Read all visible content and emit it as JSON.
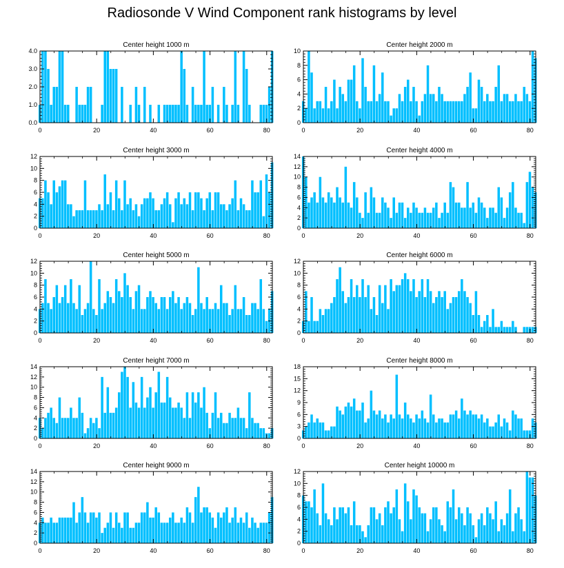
{
  "page": {
    "title": "Radiosonde V Wind Component rank histograms by level"
  },
  "style": {
    "bar_color": "#00bfff",
    "bar_edge": "#ffffff",
    "axis_color": "#000000"
  },
  "chart_data": [
    {
      "type": "bar",
      "title": "Center height 1000 m",
      "xlim": [
        0,
        82
      ],
      "ylim": [
        0,
        4
      ],
      "xticks": [
        0,
        20,
        40,
        60,
        80
      ],
      "yticks": [
        0,
        1,
        2,
        3,
        4
      ],
      "yticklabels": [
        "0.0",
        "1.0",
        "2.0",
        "3.0",
        "4.0"
      ],
      "ylabel_fmt": "1",
      "values": [
        1,
        4,
        4,
        3,
        1,
        2,
        2,
        4,
        4,
        1,
        1,
        0,
        0,
        2,
        1,
        1,
        1,
        2,
        2,
        0,
        0,
        0,
        1,
        4,
        4,
        3,
        3,
        3,
        0,
        2,
        0,
        0,
        1,
        0,
        2,
        1,
        0,
        2,
        0,
        1,
        0,
        0,
        1,
        0,
        1,
        1,
        1,
        1,
        1,
        1,
        4,
        3,
        1,
        0,
        2,
        1,
        1,
        1,
        4,
        1,
        1,
        2,
        0,
        1,
        0,
        2,
        1,
        0,
        1,
        4,
        1,
        0,
        4,
        3,
        1,
        0,
        0,
        0,
        1,
        1,
        1,
        2,
        4
      ]
    },
    {
      "type": "bar",
      "title": "Center height 2000 m",
      "xlim": [
        0,
        82
      ],
      "ylim": [
        0,
        10
      ],
      "xticks": [
        0,
        20,
        40,
        60,
        80
      ],
      "yticks": [
        0,
        2,
        4,
        6,
        8,
        10
      ],
      "yticklabels": [
        "0",
        "2",
        "4",
        "6",
        "8",
        "10"
      ],
      "values": [
        3,
        2,
        10,
        7,
        2,
        3,
        3,
        2,
        5,
        2,
        3,
        6,
        2,
        5,
        4,
        3,
        6,
        6,
        8,
        3,
        2,
        9,
        5,
        3,
        3,
        8,
        3,
        4,
        7,
        3,
        3,
        1,
        2,
        2,
        4,
        3,
        5,
        6,
        3,
        5,
        3,
        1,
        3,
        4,
        8,
        4,
        4,
        3,
        5,
        4,
        3,
        3,
        3,
        3,
        3,
        3,
        3,
        4,
        5,
        7,
        2,
        2,
        6,
        5,
        3,
        4,
        3,
        3,
        5,
        8,
        3,
        4,
        4,
        3,
        3,
        4,
        3,
        3,
        5,
        4,
        3,
        10,
        9
      ]
    },
    {
      "type": "bar",
      "title": "Center height 3000 m",
      "xlim": [
        0,
        82
      ],
      "ylim": [
        0,
        12
      ],
      "xticks": [
        0,
        20,
        40,
        60,
        80
      ],
      "yticks": [
        0,
        2,
        4,
        6,
        8,
        10,
        12
      ],
      "yticklabels": [
        "0",
        "2",
        "4",
        "6",
        "8",
        "10",
        "12"
      ],
      "values": [
        5,
        5,
        8,
        6,
        4,
        8,
        6,
        7,
        8,
        8,
        4,
        4,
        2,
        3,
        3,
        3,
        8,
        3,
        3,
        3,
        3,
        4,
        3,
        9,
        4,
        6,
        3,
        8,
        5,
        3,
        8,
        4,
        5,
        3,
        4,
        2,
        4,
        5,
        5,
        6,
        5,
        3,
        3,
        4,
        5,
        6,
        4,
        1,
        5,
        6,
        4,
        5,
        4,
        6,
        3,
        6,
        6,
        5,
        3,
        5,
        6,
        3,
        6,
        6,
        4,
        4,
        3,
        4,
        5,
        8,
        3,
        5,
        4,
        3,
        3,
        8,
        6,
        6,
        8,
        2,
        9,
        6,
        11
      ]
    },
    {
      "type": "bar",
      "title": "Center height 4000 m",
      "xlim": [
        0,
        82
      ],
      "ylim": [
        0,
        14
      ],
      "xticks": [
        0,
        20,
        40,
        60,
        80
      ],
      "yticks": [
        0,
        2,
        4,
        6,
        8,
        10,
        12,
        14
      ],
      "yticklabels": [
        "0",
        "2",
        "4",
        "6",
        "8",
        "10",
        "12",
        "14"
      ],
      "values": [
        14,
        10,
        5,
        6,
        7,
        5,
        10,
        6,
        5,
        7,
        6,
        5,
        8,
        6,
        5,
        12,
        5,
        4,
        9,
        6,
        3,
        2,
        7,
        3,
        8,
        6,
        3,
        3,
        6,
        5,
        4,
        2,
        6,
        3,
        5,
        5,
        2,
        4,
        3,
        5,
        4,
        3,
        3,
        4,
        3,
        3,
        4,
        5,
        2,
        3,
        5,
        3,
        9,
        8,
        5,
        5,
        4,
        4,
        9,
        4,
        5,
        3,
        6,
        5,
        4,
        2,
        4,
        4,
        3,
        8,
        6,
        2,
        4,
        7,
        9,
        4,
        3,
        3,
        1,
        9,
        11,
        8,
        7
      ]
    },
    {
      "type": "bar",
      "title": "Center height 5000 m",
      "xlim": [
        0,
        82
      ],
      "ylim": [
        0,
        12
      ],
      "xticks": [
        0,
        20,
        40,
        60,
        80
      ],
      "yticks": [
        0,
        2,
        4,
        6,
        8,
        10,
        12
      ],
      "yticklabels": [
        "0",
        "2",
        "4",
        "6",
        "8",
        "10",
        "12"
      ],
      "values": [
        4,
        5,
        9,
        5,
        4,
        6,
        8,
        5,
        6,
        8,
        5,
        9,
        5,
        4,
        8,
        3,
        4,
        5,
        12,
        4,
        3,
        9,
        4,
        5,
        7,
        6,
        5,
        9,
        7,
        6,
        10,
        8,
        6,
        4,
        7,
        8,
        4,
        4,
        6,
        7,
        6,
        5,
        4,
        6,
        6,
        4,
        6,
        7,
        5,
        6,
        4,
        5,
        6,
        5,
        3,
        4,
        11,
        5,
        4,
        6,
        4,
        4,
        5,
        4,
        8,
        5,
        5,
        3,
        4,
        8,
        4,
        4,
        6,
        3,
        3,
        5,
        5,
        4,
        9,
        4,
        2,
        4,
        7
      ]
    },
    {
      "type": "bar",
      "title": "Center height 6000 m",
      "xlim": [
        0,
        82
      ],
      "ylim": [
        0,
        12
      ],
      "xticks": [
        0,
        20,
        40,
        60,
        80
      ],
      "yticks": [
        0,
        2,
        4,
        6,
        8,
        10,
        12
      ],
      "yticklabels": [
        "0",
        "2",
        "4",
        "6",
        "8",
        "10",
        "12"
      ],
      "values": [
        2,
        7,
        2,
        6,
        2,
        2,
        4,
        3,
        4,
        4,
        5,
        6,
        9,
        11,
        7,
        5,
        6,
        9,
        6,
        8,
        6,
        9,
        6,
        8,
        4,
        6,
        3,
        8,
        5,
        8,
        4,
        9,
        7,
        8,
        8,
        9,
        10,
        9,
        7,
        9,
        6,
        7,
        9,
        6,
        9,
        7,
        5,
        6,
        7,
        6,
        7,
        4,
        5,
        6,
        6,
        7,
        9,
        7,
        6,
        5,
        3,
        7,
        3,
        1,
        2,
        3,
        1,
        4,
        1,
        1,
        2,
        1,
        1,
        1,
        2,
        1,
        0,
        0,
        1,
        1,
        1,
        1,
        1
      ]
    },
    {
      "type": "bar",
      "title": "Center height 7000 m",
      "xlim": [
        0,
        82
      ],
      "ylim": [
        0,
        14
      ],
      "xticks": [
        0,
        20,
        40,
        60,
        80
      ],
      "yticks": [
        0,
        2,
        4,
        6,
        8,
        10,
        12,
        14
      ],
      "yticklabels": [
        "0",
        "2",
        "4",
        "6",
        "8",
        "10",
        "12",
        "14"
      ],
      "values": [
        4,
        2,
        4,
        5,
        6,
        4,
        3,
        8,
        4,
        4,
        4,
        6,
        4,
        4,
        8,
        5,
        1,
        2,
        4,
        3,
        4,
        2,
        12,
        5,
        10,
        5,
        5,
        6,
        9,
        13,
        14,
        12,
        6,
        11,
        7,
        6,
        12,
        6,
        8,
        10,
        6,
        9,
        13,
        7,
        7,
        12,
        8,
        6,
        6,
        7,
        6,
        4,
        9,
        4,
        9,
        7,
        9,
        6,
        10,
        5,
        2,
        5,
        9,
        4,
        5,
        3,
        3,
        5,
        4,
        4,
        6,
        4,
        4,
        2,
        9,
        4,
        3,
        3,
        2,
        2,
        1,
        1,
        2
      ]
    },
    {
      "type": "bar",
      "title": "Center height 8000 m",
      "xlim": [
        0,
        82
      ],
      "ylim": [
        0,
        18
      ],
      "xticks": [
        0,
        20,
        40,
        60,
        80
      ],
      "yticks": [
        0,
        3,
        6,
        9,
        12,
        15,
        18
      ],
      "yticklabels": [
        "0",
        "3",
        "6",
        "9",
        "12",
        "15",
        "18"
      ],
      "values": [
        2,
        3,
        4,
        6,
        4,
        5,
        4,
        4,
        2,
        2,
        3,
        3,
        8,
        7,
        6,
        8,
        9,
        8,
        10,
        7,
        7,
        9,
        4,
        5,
        12,
        7,
        6,
        7,
        5,
        6,
        4,
        6,
        5,
        16,
        6,
        5,
        9,
        6,
        5,
        4,
        6,
        5,
        7,
        5,
        4,
        11,
        6,
        4,
        5,
        5,
        4,
        4,
        6,
        6,
        7,
        5,
        10,
        7,
        6,
        7,
        6,
        6,
        5,
        6,
        4,
        5,
        3,
        3,
        4,
        6,
        3,
        5,
        4,
        2,
        7,
        6,
        5,
        5,
        2,
        2,
        2,
        5,
        4
      ]
    },
    {
      "type": "bar",
      "title": "Center height 9000 m",
      "xlim": [
        0,
        82
      ],
      "ylim": [
        0,
        14
      ],
      "xticks": [
        0,
        20,
        40,
        60,
        80
      ],
      "yticks": [
        0,
        2,
        4,
        6,
        8,
        10,
        12,
        14
      ],
      "yticklabels": [
        "0",
        "2",
        "4",
        "6",
        "8",
        "10",
        "12",
        "14"
      ],
      "values": [
        4,
        5,
        4,
        4,
        5,
        4,
        4,
        5,
        5,
        5,
        5,
        5,
        8,
        4,
        6,
        9,
        6,
        4,
        6,
        6,
        5,
        6,
        2,
        3,
        4,
        6,
        3,
        6,
        4,
        3,
        6,
        6,
        3,
        3,
        4,
        4,
        6,
        6,
        8,
        5,
        5,
        7,
        6,
        4,
        4,
        4,
        5,
        6,
        4,
        4,
        5,
        4,
        7,
        6,
        4,
        9,
        11,
        6,
        7,
        7,
        6,
        5,
        3,
        6,
        5,
        6,
        7,
        4,
        5,
        7,
        4,
        5,
        4,
        6,
        3,
        5,
        4,
        3,
        4,
        4,
        4,
        6,
        9
      ]
    },
    {
      "type": "bar",
      "title": "Center height 10000 m",
      "xlim": [
        0,
        82
      ],
      "ylim": [
        0,
        12
      ],
      "xticks": [
        0,
        20,
        40,
        60,
        80
      ],
      "yticks": [
        0,
        2,
        4,
        6,
        8,
        10,
        12
      ],
      "yticklabels": [
        "0",
        "2",
        "4",
        "6",
        "8",
        "10",
        "12"
      ],
      "values": [
        8,
        7,
        7,
        6,
        9,
        5,
        3,
        10,
        5,
        4,
        3,
        6,
        4,
        6,
        6,
        5,
        6,
        3,
        7,
        3,
        3,
        2,
        1,
        3,
        6,
        6,
        4,
        5,
        3,
        6,
        7,
        5,
        6,
        9,
        4,
        2,
        10,
        7,
        4,
        9,
        8,
        6,
        5,
        5,
        2,
        4,
        6,
        6,
        4,
        3,
        2,
        7,
        6,
        9,
        4,
        6,
        5,
        3,
        6,
        5,
        3,
        1,
        4,
        5,
        3,
        6,
        5,
        4,
        7,
        2,
        4,
        3,
        5,
        9,
        2,
        5,
        6,
        4,
        2,
        12,
        11,
        11,
        8
      ]
    }
  ]
}
